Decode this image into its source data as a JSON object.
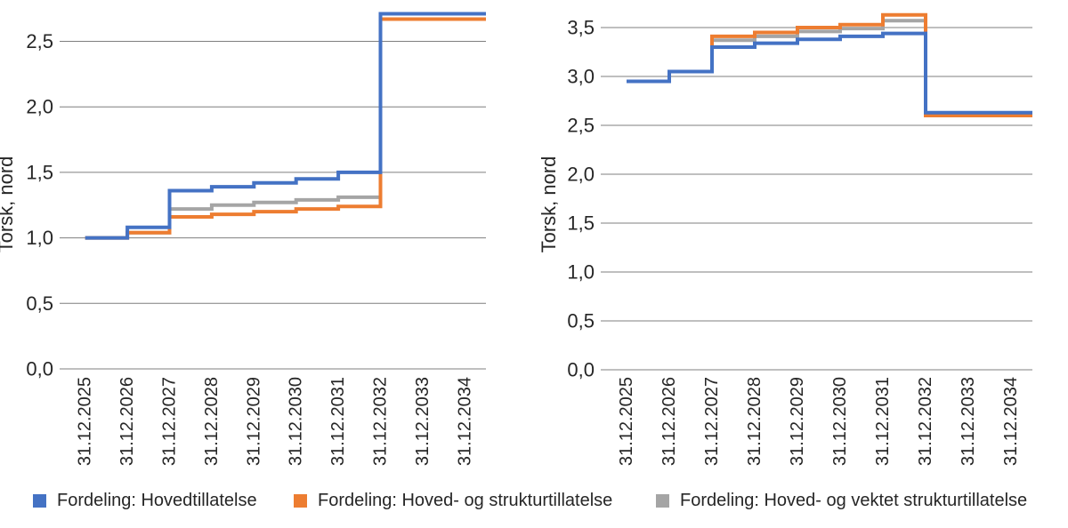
{
  "legend": {
    "items": [
      {
        "label": "Fordeling: Hovedtillatelse",
        "color": "#4472C4"
      },
      {
        "label": "Fordeling: Hoved- og strukturtillatelse",
        "color": "#ED7D31"
      },
      {
        "label": "Fordeling: Hoved- og vektet strukturtillatelse",
        "color": "#A5A5A5"
      }
    ]
  },
  "chart_data": [
    {
      "type": "line",
      "subtype": "step-after",
      "title": "",
      "xlabel": "",
      "ylabel": "Torsk, nord",
      "grid": true,
      "legend_position": "bottom",
      "ylim": [
        0,
        2.75
      ],
      "yticks": [
        {
          "v": 0.0,
          "label": "0,0"
        },
        {
          "v": 0.5,
          "label": "0,5"
        },
        {
          "v": 1.0,
          "label": "1,0"
        },
        {
          "v": 1.5,
          "label": "1,5"
        },
        {
          "v": 2.0,
          "label": "2,0"
        },
        {
          "v": 2.5,
          "label": "2,5"
        }
      ],
      "categories": [
        "31.12.2025",
        "31.12.2026",
        "31.12.2027",
        "31.12.2028",
        "31.12.2029",
        "31.12.2030",
        "31.12.2031",
        "31.12.2032",
        "31.12.2033",
        "31.12.2034"
      ],
      "series": [
        {
          "name": "Fordeling: Hovedtillatelse",
          "color": "#4472C4",
          "values": [
            1.0,
            1.08,
            1.36,
            1.39,
            1.42,
            1.45,
            1.5,
            2.71,
            2.71,
            2.71
          ]
        },
        {
          "name": "Fordeling: Hoved- og strukturtillatelse",
          "color": "#ED7D31",
          "values": [
            1.0,
            1.04,
            1.16,
            1.18,
            1.2,
            1.22,
            1.24,
            2.67,
            2.67,
            2.67
          ]
        },
        {
          "name": "Fordeling: Hoved- og vektet strukturtillatelse",
          "color": "#A5A5A5",
          "values": [
            1.0,
            1.04,
            1.22,
            1.25,
            1.27,
            1.29,
            1.31,
            2.67,
            2.67,
            2.67
          ]
        }
      ]
    },
    {
      "type": "line",
      "subtype": "step-after",
      "title": "",
      "xlabel": "",
      "ylabel": "Torsk, nord",
      "grid": true,
      "legend_position": "bottom",
      "ylim": [
        0,
        3.66
      ],
      "yticks": [
        {
          "v": 0.0,
          "label": "0,0"
        },
        {
          "v": 0.5,
          "label": "0,5"
        },
        {
          "v": 1.0,
          "label": "1,0"
        },
        {
          "v": 1.5,
          "label": "1,5"
        },
        {
          "v": 2.0,
          "label": "2,0"
        },
        {
          "v": 2.5,
          "label": "2,5"
        },
        {
          "v": 3.0,
          "label": "3,0"
        },
        {
          "v": 3.5,
          "label": "3,5"
        }
      ],
      "categories": [
        "31.12.2025",
        "31.12.2026",
        "31.12.2027",
        "31.12.2028",
        "31.12.2029",
        "31.12.2030",
        "31.12.2031",
        "31.12.2032",
        "31.12.2033",
        "31.12.2034"
      ],
      "series": [
        {
          "name": "Fordeling: Hovedtillatelse",
          "color": "#4472C4",
          "values": [
            2.95,
            3.05,
            3.3,
            3.34,
            3.38,
            3.41,
            3.44,
            2.63,
            2.63,
            2.63
          ]
        },
        {
          "name": "Fordeling: Hoved- og strukturtillatelse",
          "color": "#ED7D31",
          "values": [
            2.95,
            3.05,
            3.41,
            3.45,
            3.5,
            3.53,
            3.63,
            2.6,
            2.6,
            2.6
          ]
        },
        {
          "name": "Fordeling: Hoved- og vektet strukturtillatelse",
          "color": "#A5A5A5",
          "values": [
            2.95,
            3.05,
            3.37,
            3.41,
            3.46,
            3.49,
            3.57,
            2.6,
            2.6,
            2.6
          ]
        }
      ]
    }
  ]
}
